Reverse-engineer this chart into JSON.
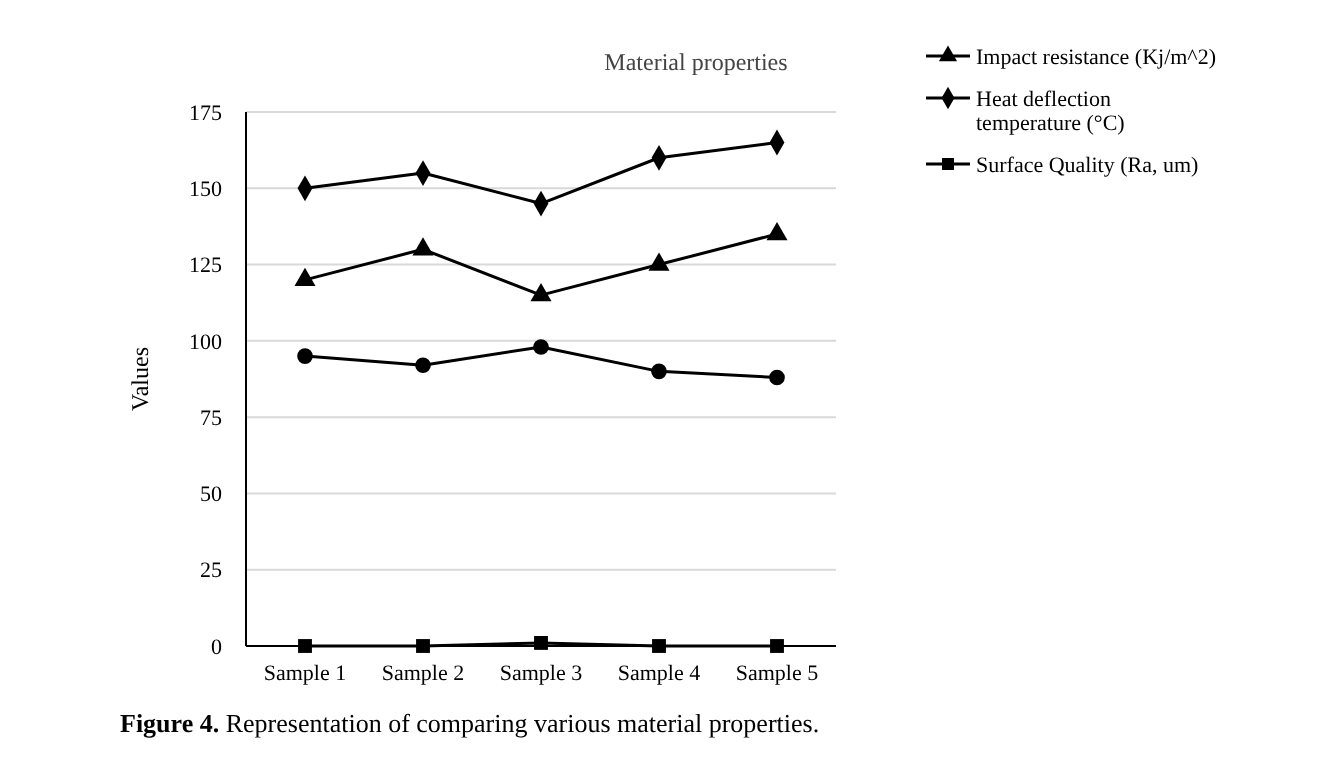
{
  "chart_data": {
    "type": "line",
    "title": "Material properties",
    "ylabel": "Values",
    "categories": [
      "Sample 1",
      "Sample 2",
      "Sample 3",
      "Sample 4",
      "Sample 5"
    ],
    "series": [
      {
        "name": "Impact resistance (Kj/m^2)",
        "color": "#000000",
        "marker": "triangle",
        "values": [
          120,
          130,
          115,
          125,
          135
        ]
      },
      {
        "name": "Heat deflection temperature (°C)",
        "color": "#000000",
        "marker": "diamond",
        "values": [
          150,
          155,
          145,
          160,
          165
        ]
      },
      {
        "name": "Surface Quality (Ra, um)",
        "color": "#000000",
        "marker": "square",
        "values": [
          0,
          0,
          1,
          0,
          0
        ]
      },
      {
        "color": "#000000",
        "marker": "circle",
        "values": [
          95,
          92,
          98,
          90,
          88
        ]
      }
    ],
    "ylim": [
      0,
      175
    ],
    "yticks": [
      0,
      25,
      50,
      75,
      100,
      125,
      150,
      175
    ],
    "grid": "y",
    "legend": "top right",
    "annotations": [
      "Figure 4. Representation of comparing various material properties."
    ]
  }
}
